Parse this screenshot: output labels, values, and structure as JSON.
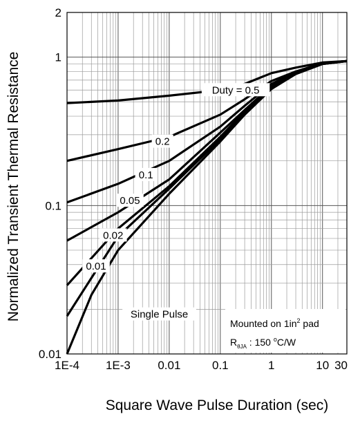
{
  "chart_data": {
    "type": "line",
    "xscale": "log",
    "yscale": "log",
    "xlim": [
      0.0001,
      30
    ],
    "ylim": [
      0.01,
      2
    ],
    "xlabel": "Square Wave Pulse Duration (sec)",
    "ylabel": "Normalized Transient Thermal Resistance",
    "x_ticks": [
      {
        "value": 0.0001,
        "label": "1E-4"
      },
      {
        "value": 0.001,
        "label": "1E-3"
      },
      {
        "value": 0.01,
        "label": "0.01"
      },
      {
        "value": 0.1,
        "label": "0.1"
      },
      {
        "value": 1,
        "label": "1"
      },
      {
        "value": 10,
        "label": "10"
      },
      {
        "value": 30,
        "label": "30"
      }
    ],
    "y_ticks": [
      {
        "value": 0.01,
        "label": "0.01"
      },
      {
        "value": 0.1,
        "label": "0.1"
      },
      {
        "value": 1,
        "label": "1"
      },
      {
        "value": 2,
        "label": "2"
      }
    ],
    "grid": true,
    "series": [
      {
        "name": "Duty = 0.5",
        "x": [
          0.0001,
          0.001,
          0.01,
          0.1,
          0.3,
          1,
          3,
          10,
          30
        ],
        "y": [
          0.49,
          0.51,
          0.55,
          0.6,
          0.66,
          0.78,
          0.85,
          0.92,
          0.94
        ]
      },
      {
        "name": "0.2",
        "x": [
          0.0001,
          0.001,
          0.01,
          0.1,
          0.3,
          1,
          3,
          10,
          30
        ],
        "y": [
          0.2,
          0.24,
          0.29,
          0.41,
          0.52,
          0.69,
          0.8,
          0.91,
          0.94
        ]
      },
      {
        "name": "0.1",
        "x": [
          0.0001,
          0.001,
          0.01,
          0.1,
          0.3,
          1,
          3,
          10,
          30
        ],
        "y": [
          0.105,
          0.14,
          0.2,
          0.34,
          0.47,
          0.66,
          0.79,
          0.91,
          0.94
        ]
      },
      {
        "name": "0.05",
        "x": [
          0.0001,
          0.001,
          0.01,
          0.1,
          0.3,
          1,
          3,
          10,
          30
        ],
        "y": [
          0.058,
          0.09,
          0.15,
          0.31,
          0.44,
          0.64,
          0.78,
          0.91,
          0.94
        ]
      },
      {
        "name": "0.02",
        "x": [
          0.0001,
          0.001,
          0.01,
          0.1,
          0.3,
          1,
          3,
          10,
          30
        ],
        "y": [
          0.029,
          0.07,
          0.135,
          0.29,
          0.43,
          0.63,
          0.78,
          0.9,
          0.94
        ]
      },
      {
        "name": "0.01",
        "x": [
          0.0001,
          0.001,
          0.01,
          0.1,
          0.3,
          1,
          3,
          10,
          30
        ],
        "y": [
          0.018,
          0.062,
          0.13,
          0.28,
          0.42,
          0.62,
          0.77,
          0.9,
          0.94
        ]
      },
      {
        "name": "Single Pulse",
        "x": [
          0.0001,
          0.0003,
          0.001,
          0.01,
          0.1,
          0.3,
          1,
          3,
          10,
          30
        ],
        "y": [
          0.01,
          0.025,
          0.05,
          0.12,
          0.27,
          0.41,
          0.61,
          0.77,
          0.9,
          0.94
        ]
      }
    ],
    "curve_labels": [
      {
        "text": "Duty =  0.5",
        "x": 0.2,
        "y": 0.6
      },
      {
        "text": "0.2",
        "x": 0.0074,
        "y": 0.27
      },
      {
        "text": "0.1",
        "x": 0.0035,
        "y": 0.161
      },
      {
        "text": "0.05",
        "x": 0.0017,
        "y": 0.108
      },
      {
        "text": "0.02",
        "x": 0.0008,
        "y": 0.063
      },
      {
        "text": "0.01",
        "x": 0.00037,
        "y": 0.039
      },
      {
        "text": "Single Pulse",
        "x": 0.0064,
        "y": 0.0185
      }
    ],
    "annotation": {
      "line1_text": "Mounted on 1in",
      "line1_sup": "2",
      "line1_suffix": " pad",
      "line2_main": "R",
      "line2_sub": "θJA",
      "line2_text": " : 150 ",
      "line2_sup": "o",
      "line2_suffix": "C/W"
    }
  }
}
